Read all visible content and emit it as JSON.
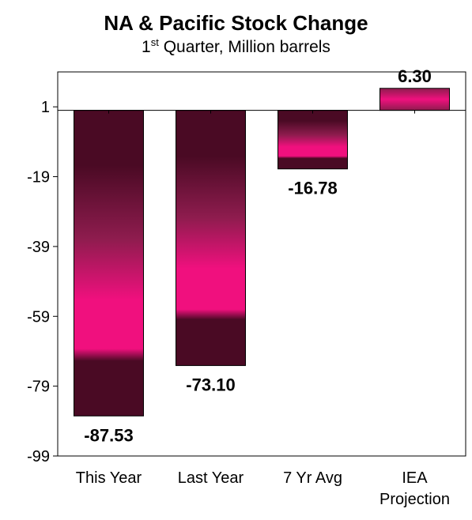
{
  "chart_data": {
    "type": "bar",
    "title": "NA & Pacific Stock Change",
    "subtitle_prefix": "1",
    "subtitle_sup": "st",
    "subtitle_rest": " Quarter, Million barrels",
    "categories": [
      [
        "This Year"
      ],
      [
        "Last Year"
      ],
      [
        "7 Yr Avg"
      ],
      [
        "IEA",
        "Projection"
      ]
    ],
    "values": [
      -87.53,
      -73.1,
      -16.78,
      6.3
    ],
    "value_labels": [
      "-87.53",
      "-73.10",
      "-16.78",
      "6.30"
    ],
    "ylim": [
      -99,
      11
    ],
    "yticks": [
      1,
      -19,
      -39,
      -59,
      -79,
      -99
    ],
    "grid": false,
    "colors": {
      "dark": "#4a0a24",
      "mid": "#8e1c4e",
      "bright": "#f0107e",
      "plot_border": "#000000"
    }
  }
}
